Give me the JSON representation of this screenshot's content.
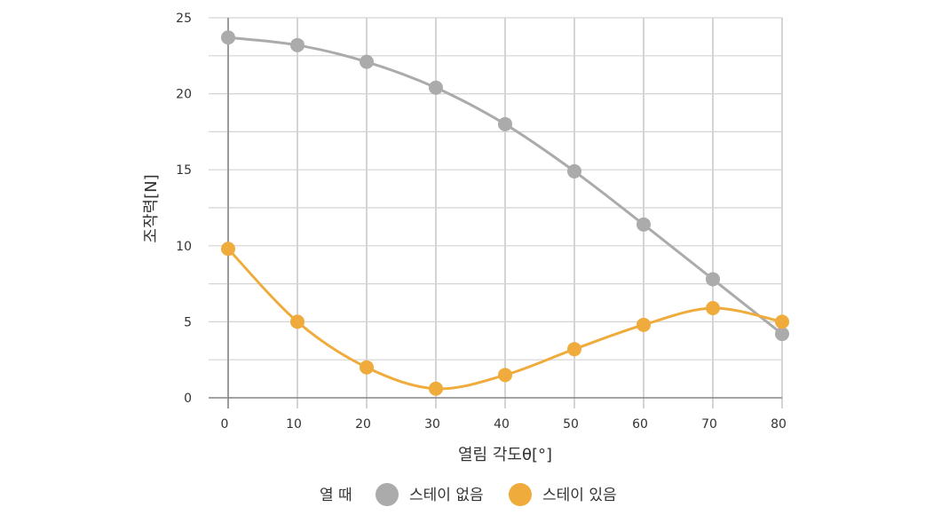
{
  "chart_data": {
    "type": "line",
    "title": "",
    "xlabel": "열림 각도θ[°]",
    "ylabel": "조작력[N]",
    "xlim": [
      0,
      80
    ],
    "ylim": [
      0,
      25
    ],
    "xticks": [
      0,
      10,
      20,
      30,
      40,
      50,
      60,
      70,
      80
    ],
    "yticks": [
      0,
      5,
      10,
      15,
      20,
      25
    ],
    "grid": true,
    "legend_position": "bottom",
    "legend_title": "열 때",
    "x": [
      0,
      10,
      20,
      30,
      40,
      50,
      60,
      70,
      80
    ],
    "series": [
      {
        "name": "스테이 없음",
        "color": "#ababab",
        "values": [
          23.7,
          23.2,
          22.1,
          20.4,
          18.0,
          14.9,
          11.4,
          7.8,
          4.2
        ]
      },
      {
        "name": "스테이 있음",
        "color": "#efac3c",
        "values": [
          9.8,
          5.0,
          2.0,
          0.6,
          1.5,
          3.2,
          4.8,
          5.9,
          5.0
        ]
      }
    ]
  }
}
